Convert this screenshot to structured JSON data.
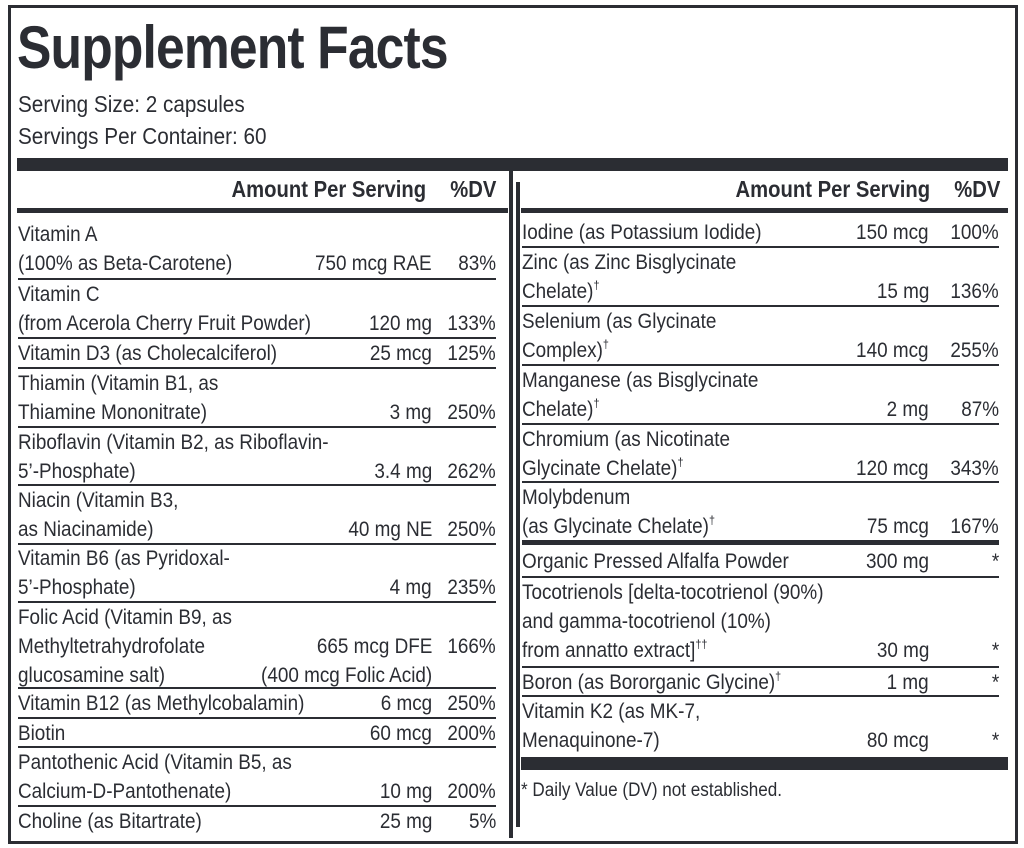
{
  "title": "Supplement Facts",
  "serving_size": "Serving Size: 2 capsules",
  "servings_per_container": "Servings Per Container: 60",
  "left_header": {
    "amount": "Amount Per Serving",
    "dv": "%DV"
  },
  "right_header": {
    "amount": "Amount Per Serving",
    "dv": "%DV"
  },
  "left_rows": [
    {
      "lines": [
        "Vitamin A",
        "(100% as Beta-Carotene)"
      ],
      "amount": "750 mcg RAE",
      "dv": "83%"
    },
    {
      "lines": [
        "Vitamin C",
        "(from Acerola Cherry Fruit Powder)"
      ],
      "amount": "120 mg",
      "dv": "133%"
    },
    {
      "lines": [
        "Vitamin D3 (as Cholecalciferol)"
      ],
      "amount": "25 mcg",
      "dv": "125%"
    },
    {
      "lines": [
        "Thiamin (Vitamin B1, as",
        "Thiamine Mononitrate)"
      ],
      "amount": "3 mg",
      "dv": "250%"
    },
    {
      "lines": [
        "Riboflavin (Vitamin B2, as Riboflavin-",
        "5’-Phosphate)"
      ],
      "amount": "3.4 mg",
      "dv": "262%"
    },
    {
      "lines": [
        "Niacin (Vitamin B3,",
        "as Niacinamide)"
      ],
      "amount": "40 mg NE",
      "dv": "250%"
    },
    {
      "lines": [
        "Vitamin B6 (as Pyridoxal-",
        "5’-Phosphate)"
      ],
      "amount": "4 mg",
      "dv": "235%"
    },
    {
      "lines": [
        "Folic Acid (Vitamin B9, as",
        "Methyltetrahydrofolate",
        "glucosamine salt)"
      ],
      "amount": "665 mcg DFE",
      "amount_note": "(400 mcg Folic Acid)",
      "dv": "166%"
    },
    {
      "lines": [
        "Vitamin B12 (as Methylcobalamin)"
      ],
      "amount": "6 mcg",
      "dv": "250%"
    },
    {
      "lines": [
        "Biotin"
      ],
      "amount": "60 mcg",
      "dv": "200%"
    },
    {
      "lines": [
        "Pantothenic Acid (Vitamin B5, as",
        "Calcium-D-Pantothenate)"
      ],
      "amount": "10 mg",
      "dv": "200%"
    },
    {
      "lines": [
        "Choline (as Bitartrate)"
      ],
      "amount": "25 mg",
      "dv": "5%"
    }
  ],
  "right_rows": [
    {
      "lines": [
        "Iodine (as Potassium Iodide)"
      ],
      "amount": "150 mcg",
      "dv": "100%"
    },
    {
      "lines": [
        "Zinc (as Zinc Bisglycinate",
        "Chelate)"
      ],
      "mark": "†",
      "amount": "15 mg",
      "dv": "136%"
    },
    {
      "lines": [
        "Selenium (as Glycinate",
        "Complex)"
      ],
      "mark": "†",
      "amount": "140 mcg",
      "dv": "255%"
    },
    {
      "lines": [
        "Manganese (as Bisglycinate",
        "Chelate)"
      ],
      "mark": "†",
      "amount": "2 mg",
      "dv": "87%"
    },
    {
      "lines": [
        "Chromium (as Nicotinate",
        "Glycinate Chelate)"
      ],
      "mark": "†",
      "amount": "120 mcg",
      "dv": "343%"
    },
    {
      "lines": [
        "Molybdenum",
        "(as Glycinate Chelate)"
      ],
      "mark": "†",
      "amount": "75 mcg",
      "dv": "167%"
    },
    {
      "lines": [
        "Organic Pressed Alfalfa Powder"
      ],
      "amount": "300 mg",
      "dv": "*"
    },
    {
      "lines": [
        "Tocotrienols [delta-tocotrienol (90%)",
        "and gamma-tocotrienol (10%)",
        "from annatto extract]"
      ],
      "mark": "††",
      "amount": "30 mg",
      "dv": "*"
    },
    {
      "lines": [
        "Boron (as Bororganic Glycine)"
      ],
      "mark": "†",
      "amount": "1 mg",
      "dv": "*"
    },
    {
      "lines": [
        "Vitamin K2 (as MK-7,",
        "Menaquinone-7)"
      ],
      "amount": "80 mcg",
      "dv": "*"
    }
  ],
  "footnote": "* Daily Value (DV) not established."
}
